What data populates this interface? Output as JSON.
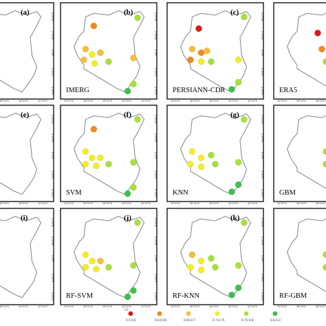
{
  "colors": {
    "red": "#d7191c",
    "orange": "#ee8a1f",
    "lightorange": "#f6bd3a",
    "yellow": "#f1ee29",
    "lightgreen": "#a7e03e",
    "green": "#3fbf4e",
    "outline": "#8c8c8c",
    "frame": "#000000"
  },
  "x_ticks": [
    "34°0'0\"E",
    "36°0'0\"E",
    "38°0'0\"E",
    "40°0'0\"E",
    "42°0'0\"E"
  ],
  "y_ticks": [
    "4°0'0\"N",
    "2°0'0\"N",
    "0°0'0\"",
    "2°0'0\"S",
    "4°0'0\"S"
  ],
  "legend": {
    "title": "CC",
    "classes": [
      {
        "label": "0.5-0.6",
        "color": "red"
      },
      {
        "label": "0.6-0.65",
        "color": "orange"
      },
      {
        "label": "0.65-0.7",
        "color": "lightorange"
      },
      {
        "label": "0.7-0.75",
        "color": "yellow"
      },
      {
        "label": "0.75-0.8",
        "color": "lightgreen"
      },
      {
        "label": "0.8-1.0",
        "color": "green"
      }
    ]
  },
  "panels": [
    {
      "id": "(a)",
      "name": "",
      "stations": [
        [
          0.38,
          0.13,
          "lightgreen"
        ],
        [
          0.25,
          0.55,
          "orange"
        ],
        [
          0.22,
          0.85,
          "lightgreen"
        ],
        [
          0.13,
          0.95,
          "green"
        ]
      ]
    },
    {
      "id": "(b)",
      "name": "IMERG",
      "stations": [
        [
          0.32,
          0.22,
          "orange"
        ],
        [
          0.85,
          0.13,
          "lightgreen"
        ],
        [
          0.22,
          0.48,
          "lightorange"
        ],
        [
          0.3,
          0.54,
          "yellow"
        ],
        [
          0.4,
          0.52,
          "lightorange"
        ],
        [
          0.5,
          0.62,
          "lightgreen"
        ],
        [
          0.33,
          0.64,
          "yellow"
        ],
        [
          0.2,
          0.6,
          "lightorange"
        ],
        [
          0.8,
          0.58,
          "lightorange"
        ],
        [
          0.8,
          0.87,
          "lightgreen"
        ],
        [
          0.73,
          0.95,
          "green"
        ]
      ]
    },
    {
      "id": "(c)",
      "name": "PERSIANN-CDR",
      "stations": [
        [
          0.3,
          0.25,
          "red"
        ],
        [
          0.85,
          0.12,
          "lightgreen"
        ],
        [
          0.22,
          0.48,
          "lightorange"
        ],
        [
          0.33,
          0.52,
          "orange"
        ],
        [
          0.4,
          0.5,
          "lightorange"
        ],
        [
          0.45,
          0.62,
          "lightgreen"
        ],
        [
          0.33,
          0.62,
          "yellow"
        ],
        [
          0.2,
          0.6,
          "orange"
        ],
        [
          0.78,
          0.6,
          "yellow"
        ],
        [
          0.78,
          0.85,
          "lightgreen"
        ],
        [
          0.7,
          0.93,
          "green"
        ]
      ]
    },
    {
      "id": "(d)",
      "name": "ERA5",
      "stations": [
        [
          0.45,
          0.3,
          "red"
        ],
        [
          0.5,
          0.48,
          "orange"
        ],
        [
          0.62,
          0.55,
          "lightorange"
        ],
        [
          0.7,
          0.62,
          "yellow"
        ],
        [
          0.55,
          0.62,
          "lightgreen"
        ]
      ]
    },
    {
      "id": "(e)",
      "name": "",
      "stations": [
        [
          0.38,
          0.13,
          "green"
        ],
        [
          0.25,
          0.56,
          "green"
        ],
        [
          0.22,
          0.85,
          "green"
        ],
        [
          0.13,
          0.95,
          "green"
        ]
      ]
    },
    {
      "id": "(f)",
      "name": "SVM",
      "stations": [
        [
          0.32,
          0.23,
          "orange"
        ],
        [
          0.85,
          0.12,
          "lightgreen"
        ],
        [
          0.22,
          0.48,
          "yellow"
        ],
        [
          0.3,
          0.55,
          "yellow"
        ],
        [
          0.4,
          0.55,
          "yellow"
        ],
        [
          0.5,
          0.62,
          "lightgreen"
        ],
        [
          0.35,
          0.64,
          "yellow"
        ],
        [
          0.22,
          0.62,
          "yellow"
        ],
        [
          0.8,
          0.6,
          "lightgreen"
        ],
        [
          0.8,
          0.88,
          "lightgreen"
        ],
        [
          0.73,
          0.95,
          "green"
        ]
      ]
    },
    {
      "id": "(g)",
      "name": "KNN",
      "stations": [
        [
          0.85,
          0.12,
          "lightgreen"
        ],
        [
          0.22,
          0.48,
          "yellow"
        ],
        [
          0.33,
          0.55,
          "yellow"
        ],
        [
          0.45,
          0.52,
          "lightgreen"
        ],
        [
          0.5,
          0.62,
          "lightgreen"
        ],
        [
          0.33,
          0.65,
          "yellow"
        ],
        [
          0.2,
          0.62,
          "yellow"
        ],
        [
          0.78,
          0.6,
          "lightgreen"
        ],
        [
          0.78,
          0.85,
          "green"
        ],
        [
          0.7,
          0.93,
          "green"
        ]
      ]
    },
    {
      "id": "(h)",
      "name": "GBM",
      "stations": [
        [
          0.55,
          0.48,
          "lightgreen"
        ],
        [
          0.62,
          0.55,
          "yellow"
        ],
        [
          0.7,
          0.62,
          "lightgreen"
        ],
        [
          0.55,
          0.62,
          "lightgreen"
        ]
      ]
    },
    {
      "id": "(i)",
      "name": "",
      "stations": [
        [
          0.38,
          0.13,
          "green"
        ],
        [
          0.25,
          0.56,
          "green"
        ],
        [
          0.22,
          0.85,
          "green"
        ],
        [
          0.13,
          0.95,
          "green"
        ]
      ]
    },
    {
      "id": "(j)",
      "name": "RF-SVM",
      "stations": [
        [
          0.85,
          0.12,
          "lightgreen"
        ],
        [
          0.22,
          0.48,
          "yellow"
        ],
        [
          0.3,
          0.55,
          "yellow"
        ],
        [
          0.4,
          0.55,
          "lightorange"
        ],
        [
          0.5,
          0.62,
          "lightgreen"
        ],
        [
          0.35,
          0.64,
          "yellow"
        ],
        [
          0.22,
          0.62,
          "yellow"
        ],
        [
          0.8,
          0.6,
          "lightgreen"
        ],
        [
          0.8,
          0.88,
          "green"
        ],
        [
          0.73,
          0.95,
          "green"
        ]
      ]
    },
    {
      "id": "(k)",
      "name": "RF-KNN",
      "stations": [
        [
          0.85,
          0.12,
          "lightgreen"
        ],
        [
          0.22,
          0.48,
          "lightorange"
        ],
        [
          0.33,
          0.55,
          "yellow"
        ],
        [
          0.45,
          0.52,
          "lightgreen"
        ],
        [
          0.5,
          0.62,
          "lightgreen"
        ],
        [
          0.33,
          0.65,
          "yellow"
        ],
        [
          0.2,
          0.62,
          "yellow"
        ],
        [
          0.78,
          0.6,
          "lightgreen"
        ],
        [
          0.78,
          0.85,
          "green"
        ],
        [
          0.7,
          0.93,
          "green"
        ]
      ]
    },
    {
      "id": "(l)",
      "name": "RF-GBM",
      "stations": [
        [
          0.55,
          0.48,
          "lightgreen"
        ],
        [
          0.62,
          0.55,
          "yellow"
        ],
        [
          0.7,
          0.62,
          "lightgreen"
        ],
        [
          0.55,
          0.62,
          "lightgreen"
        ]
      ]
    }
  ]
}
